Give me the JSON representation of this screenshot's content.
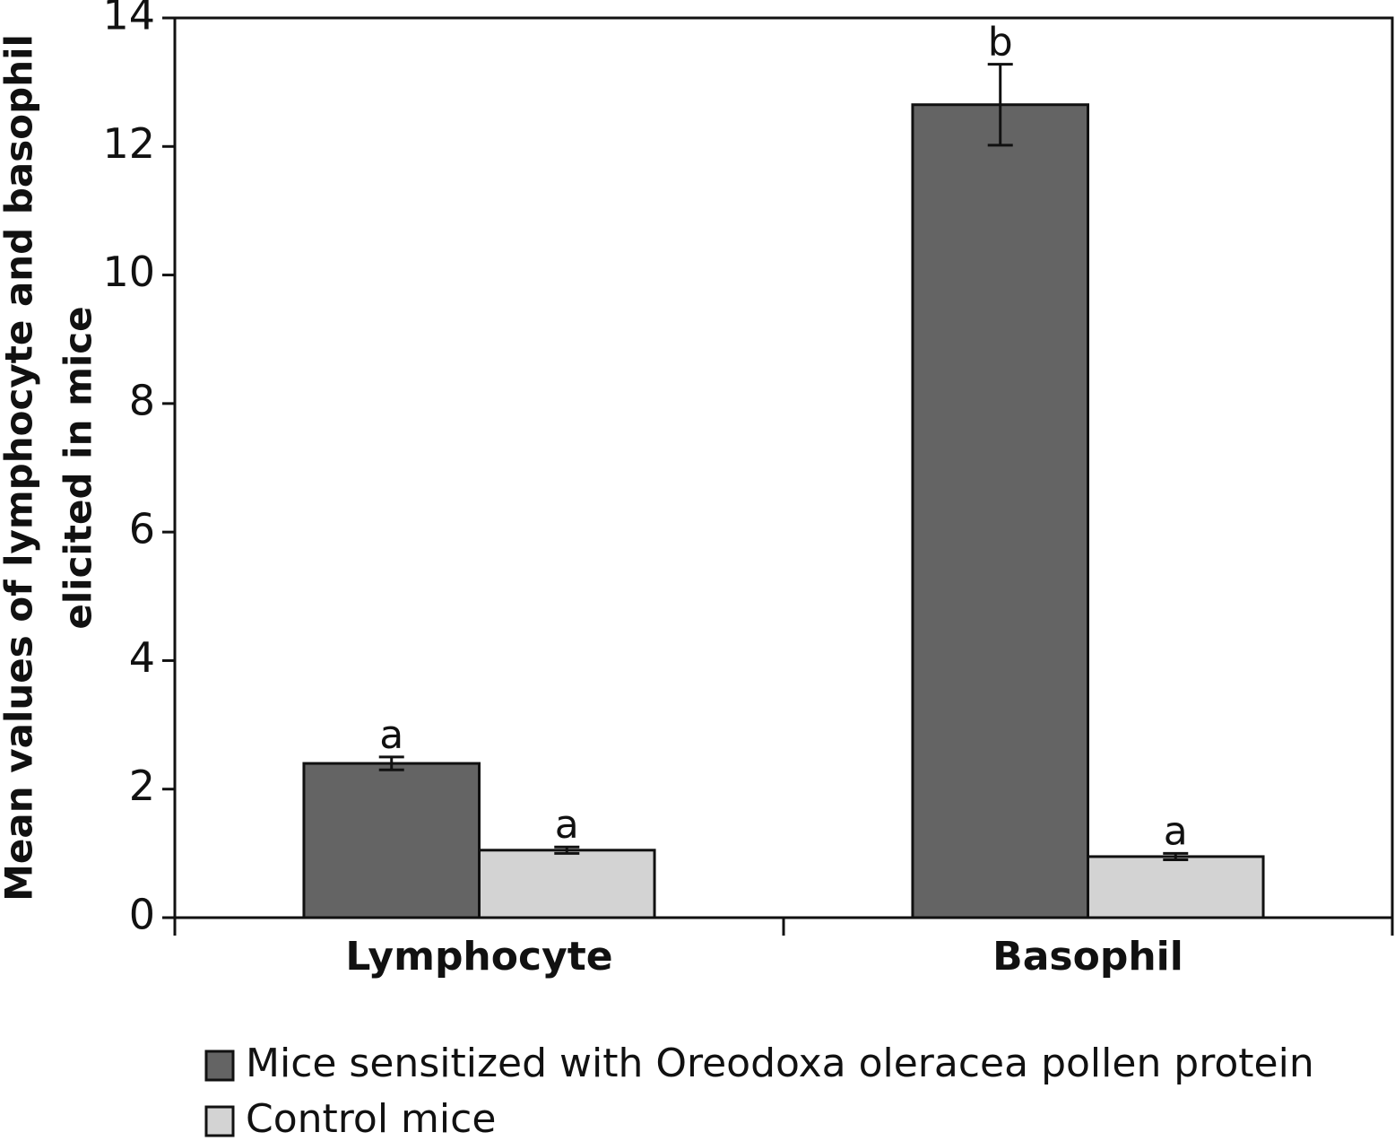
{
  "chart_data": {
    "type": "bar",
    "ylabel": [
      "Mean values of lymphocyte and basophil",
      "elicited in mice"
    ],
    "categories": [
      "Lymphocyte",
      "Basophil"
    ],
    "series": [
      {
        "name": "Mice sensitized with Oreodoxa oleracea pollen protein",
        "color": "#646464",
        "values": [
          2.4,
          12.65
        ],
        "errors": [
          0.1,
          0.63
        ],
        "annotations": [
          "a",
          "b"
        ]
      },
      {
        "name": "Control mice",
        "color": "#d3d3d3",
        "values": [
          1.05,
          0.95
        ],
        "errors": [
          0.05,
          0.05
        ],
        "annotations": [
          "a",
          "a"
        ]
      }
    ],
    "ylim": [
      0,
      14
    ],
    "yticks": [
      0,
      2,
      4,
      6,
      8,
      10,
      12,
      14
    ],
    "grid": false,
    "legend": "bottom"
  }
}
